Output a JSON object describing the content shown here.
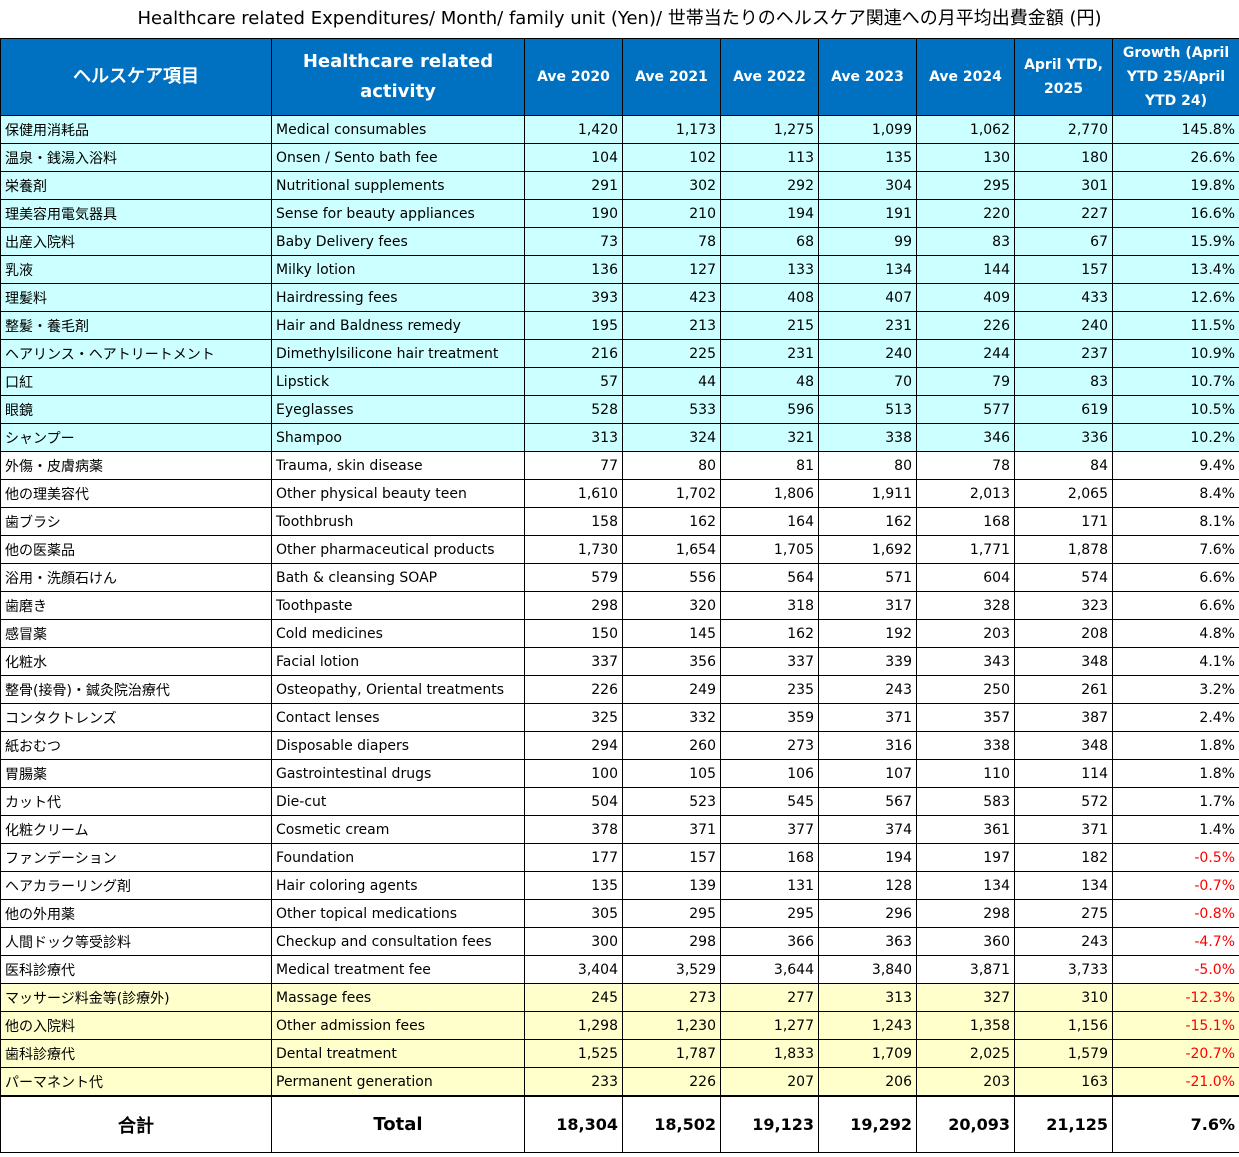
{
  "title": "Healthcare related Expenditures/ Month/ family unit (Yen)/ 世帯当たりのヘルスケア関連への月平均出費金額 (円)",
  "headers": {
    "jp_item": "ヘルスケア項目",
    "en_item": "Healthcare related activity",
    "ave2020": "Ave 2020",
    "ave2021": "Ave 2021",
    "ave2022": "Ave 2022",
    "ave2023": "Ave 2023",
    "ave2024": "Ave 2024",
    "ytd2025": "April YTD, 2025",
    "growth": "Growth (April YTD 25/April YTD 24)"
  },
  "colors": {
    "header_bg": "#0070c0",
    "growth_highlight": "#ccffff",
    "decline_highlight": "#ffffcc",
    "negative_text": "#ff0000"
  },
  "rows": [
    {
      "jp": "保健用消耗品",
      "en": "Medical consumables",
      "v": [
        "1,420",
        "1,173",
        "1,275",
        "1,099",
        "1,062",
        "2,770"
      ],
      "g": "145.8%",
      "band": "cyan"
    },
    {
      "jp": "温泉・銭湯入浴料",
      "en": "Onsen / Sento bath fee",
      "v": [
        "104",
        "102",
        "113",
        "135",
        "130",
        "180"
      ],
      "g": "26.6%",
      "band": "cyan"
    },
    {
      "jp": "栄養剤",
      "en": "Nutritional supplements",
      "v": [
        "291",
        "302",
        "292",
        "304",
        "295",
        "301"
      ],
      "g": "19.8%",
      "band": "cyan"
    },
    {
      "jp": "理美容用電気器具",
      "en": "Sense for beauty appliances",
      "v": [
        "190",
        "210",
        "194",
        "191",
        "220",
        "227"
      ],
      "g": "16.6%",
      "band": "cyan"
    },
    {
      "jp": "出産入院料",
      "en": "Baby Delivery fees",
      "v": [
        "73",
        "78",
        "68",
        "99",
        "83",
        "67"
      ],
      "g": "15.9%",
      "band": "cyan"
    },
    {
      "jp": "乳液",
      "en": "Milky lotion",
      "v": [
        "136",
        "127",
        "133",
        "134",
        "144",
        "157"
      ],
      "g": "13.4%",
      "band": "cyan"
    },
    {
      "jp": "理髪料",
      "en": "Hairdressing fees",
      "v": [
        "393",
        "423",
        "408",
        "407",
        "409",
        "433"
      ],
      "g": "12.6%",
      "band": "cyan"
    },
    {
      "jp": "整髪・養毛剤",
      "en": "Hair and Baldness remedy",
      "v": [
        "195",
        "213",
        "215",
        "231",
        "226",
        "240"
      ],
      "g": "11.5%",
      "band": "cyan"
    },
    {
      "jp": "ヘアリンス・ヘアトリートメント",
      "en": "Dimethylsilicone hair treatment",
      "v": [
        "216",
        "225",
        "231",
        "240",
        "244",
        "237"
      ],
      "g": "10.9%",
      "band": "cyan"
    },
    {
      "jp": "口紅",
      "en": "Lipstick",
      "v": [
        "57",
        "44",
        "48",
        "70",
        "79",
        "83"
      ],
      "g": "10.7%",
      "band": "cyan"
    },
    {
      "jp": "眼鏡",
      "en": "Eyeglasses",
      "v": [
        "528",
        "533",
        "596",
        "513",
        "577",
        "619"
      ],
      "g": "10.5%",
      "band": "cyan"
    },
    {
      "jp": "シャンプー",
      "en": "Shampoo",
      "v": [
        "313",
        "324",
        "321",
        "338",
        "346",
        "336"
      ],
      "g": "10.2%",
      "band": "cyan"
    },
    {
      "jp": "外傷・皮膚病薬",
      "en": "Trauma, skin disease",
      "v": [
        "77",
        "80",
        "81",
        "80",
        "78",
        "84"
      ],
      "g": "9.4%",
      "band": "white"
    },
    {
      "jp": "他の理美容代",
      "en": "Other physical beauty teen",
      "v": [
        "1,610",
        "1,702",
        "1,806",
        "1,911",
        "2,013",
        "2,065"
      ],
      "g": "8.4%",
      "band": "white"
    },
    {
      "jp": "歯ブラシ",
      "en": "Toothbrush",
      "v": [
        "158",
        "162",
        "164",
        "162",
        "168",
        "171"
      ],
      "g": "8.1%",
      "band": "white"
    },
    {
      "jp": "他の医薬品",
      "en": "Other pharmaceutical products",
      "v": [
        "1,730",
        "1,654",
        "1,705",
        "1,692",
        "1,771",
        "1,878"
      ],
      "g": "7.6%",
      "band": "white"
    },
    {
      "jp": "浴用・洗顔石けん",
      "en": "Bath & cleansing SOAP",
      "v": [
        "579",
        "556",
        "564",
        "571",
        "604",
        "574"
      ],
      "g": "6.6%",
      "band": "white"
    },
    {
      "jp": "歯磨き",
      "en": "Toothpaste",
      "v": [
        "298",
        "320",
        "318",
        "317",
        "328",
        "323"
      ],
      "g": "6.6%",
      "band": "white"
    },
    {
      "jp": "感冒薬",
      "en": "Cold medicines",
      "v": [
        "150",
        "145",
        "162",
        "192",
        "203",
        "208"
      ],
      "g": "4.8%",
      "band": "white"
    },
    {
      "jp": "化粧水",
      "en": "Facial lotion",
      "v": [
        "337",
        "356",
        "337",
        "339",
        "343",
        "348"
      ],
      "g": "4.1%",
      "band": "white"
    },
    {
      "jp": "整骨(接骨)・鍼灸院治療代",
      "en": "Osteopathy, Oriental treatments",
      "v": [
        "226",
        "249",
        "235",
        "243",
        "250",
        "261"
      ],
      "g": "3.2%",
      "band": "white"
    },
    {
      "jp": "コンタクトレンズ",
      "en": "Contact lenses",
      "v": [
        "325",
        "332",
        "359",
        "371",
        "357",
        "387"
      ],
      "g": "2.4%",
      "band": "white"
    },
    {
      "jp": "紙おむつ",
      "en": "Disposable diapers",
      "v": [
        "294",
        "260",
        "273",
        "316",
        "338",
        "348"
      ],
      "g": "1.8%",
      "band": "white"
    },
    {
      "jp": "胃腸薬",
      "en": "Gastrointestinal drugs",
      "v": [
        "100",
        "105",
        "106",
        "107",
        "110",
        "114"
      ],
      "g": "1.8%",
      "band": "white"
    },
    {
      "jp": "カット代",
      "en": "Die-cut",
      "v": [
        "504",
        "523",
        "545",
        "567",
        "583",
        "572"
      ],
      "g": "1.7%",
      "band": "white"
    },
    {
      "jp": "化粧クリーム",
      "en": "Cosmetic cream",
      "v": [
        "378",
        "371",
        "377",
        "374",
        "361",
        "371"
      ],
      "g": "1.4%",
      "band": "white"
    },
    {
      "jp": "ファンデーション",
      "en": "Foundation",
      "v": [
        "177",
        "157",
        "168",
        "194",
        "197",
        "182"
      ],
      "g": "-0.5%",
      "band": "white"
    },
    {
      "jp": "ヘアカラーリング剤",
      "en": "Hair coloring agents",
      "v": [
        "135",
        "139",
        "131",
        "128",
        "134",
        "134"
      ],
      "g": "-0.7%",
      "band": "white"
    },
    {
      "jp": "他の外用薬",
      "en": "Other topical medications",
      "v": [
        "305",
        "295",
        "295",
        "296",
        "298",
        "275"
      ],
      "g": "-0.8%",
      "band": "white"
    },
    {
      "jp": "人間ドック等受診料",
      "en": "Checkup and consultation fees",
      "v": [
        "300",
        "298",
        "366",
        "363",
        "360",
        "243"
      ],
      "g": "-4.7%",
      "band": "white"
    },
    {
      "jp": "医科診療代",
      "en": "Medical treatment fee",
      "v": [
        "3,404",
        "3,529",
        "3,644",
        "3,840",
        "3,871",
        "3,733"
      ],
      "g": "-5.0%",
      "band": "white"
    },
    {
      "jp": "マッサージ料金等(診療外)",
      "en": "Massage fees",
      "v": [
        "245",
        "273",
        "277",
        "313",
        "327",
        "310"
      ],
      "g": "-12.3%",
      "band": "yellow"
    },
    {
      "jp": "他の入院料",
      "en": "Other admission fees",
      "v": [
        "1,298",
        "1,230",
        "1,277",
        "1,243",
        "1,358",
        "1,156"
      ],
      "g": "-15.1%",
      "band": "yellow"
    },
    {
      "jp": "歯科診療代",
      "en": "Dental treatment",
      "v": [
        "1,525",
        "1,787",
        "1,833",
        "1,709",
        "2,025",
        "1,579"
      ],
      "g": "-20.7%",
      "band": "yellow"
    },
    {
      "jp": "パーマネント代",
      "en": "Permanent generation",
      "v": [
        "233",
        "226",
        "207",
        "206",
        "203",
        "163"
      ],
      "g": "-21.0%",
      "band": "yellow"
    }
  ],
  "total": {
    "jp": "合計",
    "en": "Total",
    "v": [
      "18,304",
      "18,502",
      "19,123",
      "19,292",
      "20,093",
      "21,125"
    ],
    "g": "7.6%"
  }
}
